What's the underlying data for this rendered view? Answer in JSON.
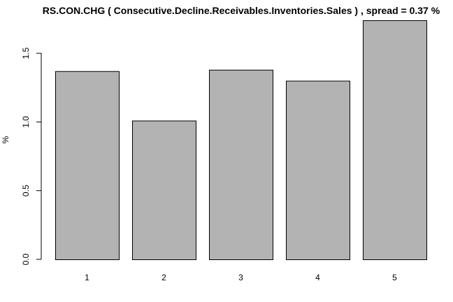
{
  "chart_data": {
    "type": "bar",
    "title": "RS.CON.CHG ( Consecutive.Decline.Receivables.Inventories.Sales ) , spread = 0.37 %",
    "xlabel": "",
    "ylabel": "%",
    "categories": [
      "1",
      "2",
      "3",
      "4",
      "5"
    ],
    "values": [
      1.37,
      1.01,
      1.38,
      1.3,
      1.74
    ],
    "ylim": [
      0,
      1.74
    ],
    "yticks": [
      0.0,
      0.5,
      1.0,
      1.5
    ],
    "ytick_labels": [
      "0.0",
      "0.5",
      "1.0",
      "1.5"
    ],
    "grid": false,
    "legend": "none",
    "bar_color": "#b3b3b3",
    "bar_border_color": "#000000"
  }
}
